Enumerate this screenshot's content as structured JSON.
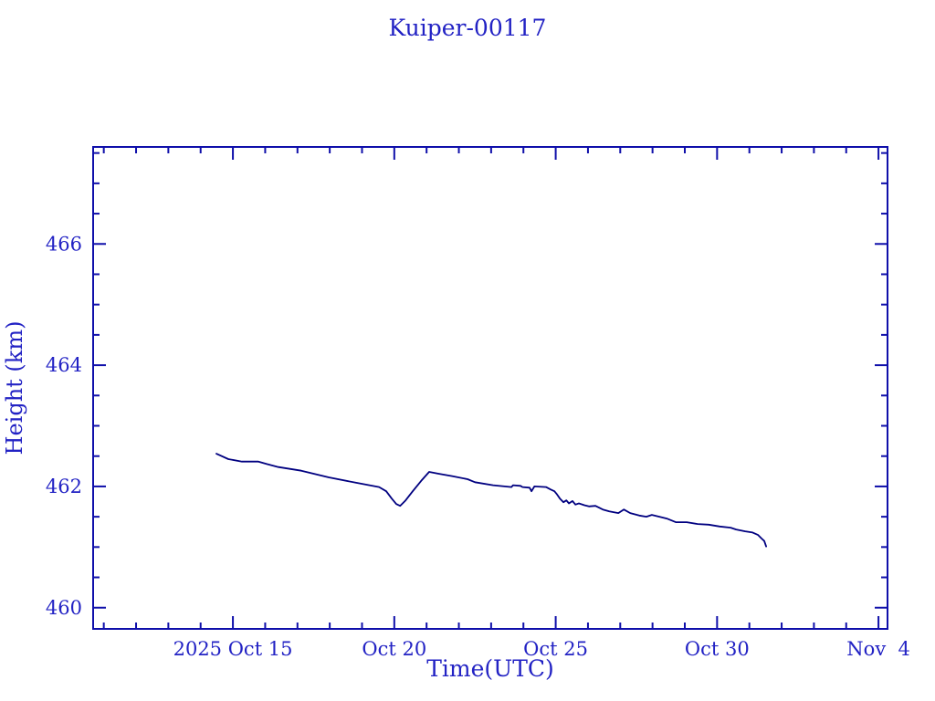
{
  "window": {
    "background": "#ffffff"
  },
  "colors": {
    "text": "#2222c4",
    "frame": "#0f0faa",
    "series_line": "#000080"
  },
  "chart_data": {
    "type": "line",
    "title": "Kuiper-00117",
    "xlabel": "Time(UTC)",
    "ylabel": "Height (km)",
    "grid": false,
    "legend": "none",
    "x_axis": {
      "unit": "days since 2025 Oct 15 00:00 UTC",
      "min": -4.33,
      "max": 20.28,
      "minor_tick_interval": 1,
      "major_ticks": [
        {
          "t": 0,
          "label": "2025 Oct 15"
        },
        {
          "t": 5,
          "label": "Oct 20"
        },
        {
          "t": 10,
          "label": "Oct 25"
        },
        {
          "t": 15,
          "label": "Oct 30"
        },
        {
          "t": 20,
          "label": "Nov  4"
        }
      ]
    },
    "y_axis": {
      "unit": "km",
      "min": 459.65,
      "max": 467.6,
      "minor_tick_interval": 0.5,
      "major_ticks": [
        {
          "v": 460,
          "label": "460"
        },
        {
          "v": 462,
          "label": "462"
        },
        {
          "v": 464,
          "label": "464"
        },
        {
          "v": 466,
          "label": "466"
        }
      ]
    },
    "series": [
      {
        "name": "height",
        "points": [
          [
            -0.51,
            462.54
          ],
          [
            -0.14,
            462.45
          ],
          [
            0.28,
            462.41
          ],
          [
            0.79,
            462.41
          ],
          [
            1.05,
            462.37
          ],
          [
            1.41,
            462.32
          ],
          [
            2.12,
            462.26
          ],
          [
            2.97,
            462.15
          ],
          [
            3.82,
            462.06
          ],
          [
            4.53,
            461.99
          ],
          [
            4.75,
            461.92
          ],
          [
            4.92,
            461.8
          ],
          [
            5.06,
            461.71
          ],
          [
            5.18,
            461.68
          ],
          [
            5.35,
            461.77
          ],
          [
            5.57,
            461.92
          ],
          [
            5.83,
            462.09
          ],
          [
            6.08,
            462.24
          ],
          [
            6.37,
            462.21
          ],
          [
            6.79,
            462.17
          ],
          [
            7.27,
            462.12
          ],
          [
            7.5,
            462.07
          ],
          [
            8.06,
            462.02
          ],
          [
            8.63,
            461.99
          ],
          [
            8.68,
            462.02
          ],
          [
            8.91,
            462.01
          ],
          [
            8.97,
            461.99
          ],
          [
            9.19,
            461.98
          ],
          [
            9.25,
            461.92
          ],
          [
            9.34,
            462.0
          ],
          [
            9.7,
            461.99
          ],
          [
            9.84,
            461.95
          ],
          [
            9.96,
            461.92
          ],
          [
            10.04,
            461.87
          ],
          [
            10.13,
            461.8
          ],
          [
            10.24,
            461.74
          ],
          [
            10.33,
            461.77
          ],
          [
            10.41,
            461.72
          ],
          [
            10.52,
            461.76
          ],
          [
            10.61,
            461.7
          ],
          [
            10.72,
            461.72
          ],
          [
            10.89,
            461.69
          ],
          [
            11.03,
            461.67
          ],
          [
            11.23,
            461.68
          ],
          [
            11.46,
            461.62
          ],
          [
            11.66,
            461.59
          ],
          [
            11.94,
            461.56
          ],
          [
            12.11,
            461.62
          ],
          [
            12.31,
            461.56
          ],
          [
            12.59,
            461.52
          ],
          [
            12.81,
            461.5
          ],
          [
            12.98,
            461.53
          ],
          [
            13.21,
            461.5
          ],
          [
            13.44,
            461.47
          ],
          [
            13.72,
            461.41
          ],
          [
            14.06,
            461.41
          ],
          [
            14.4,
            461.38
          ],
          [
            14.74,
            461.37
          ],
          [
            15.08,
            461.34
          ],
          [
            15.42,
            461.32
          ],
          [
            15.59,
            461.29
          ],
          [
            15.87,
            461.26
          ],
          [
            16.1,
            461.24
          ],
          [
            16.27,
            461.2
          ],
          [
            16.38,
            461.14
          ],
          [
            16.46,
            461.1
          ],
          [
            16.52,
            461.01
          ]
        ]
      }
    ]
  }
}
